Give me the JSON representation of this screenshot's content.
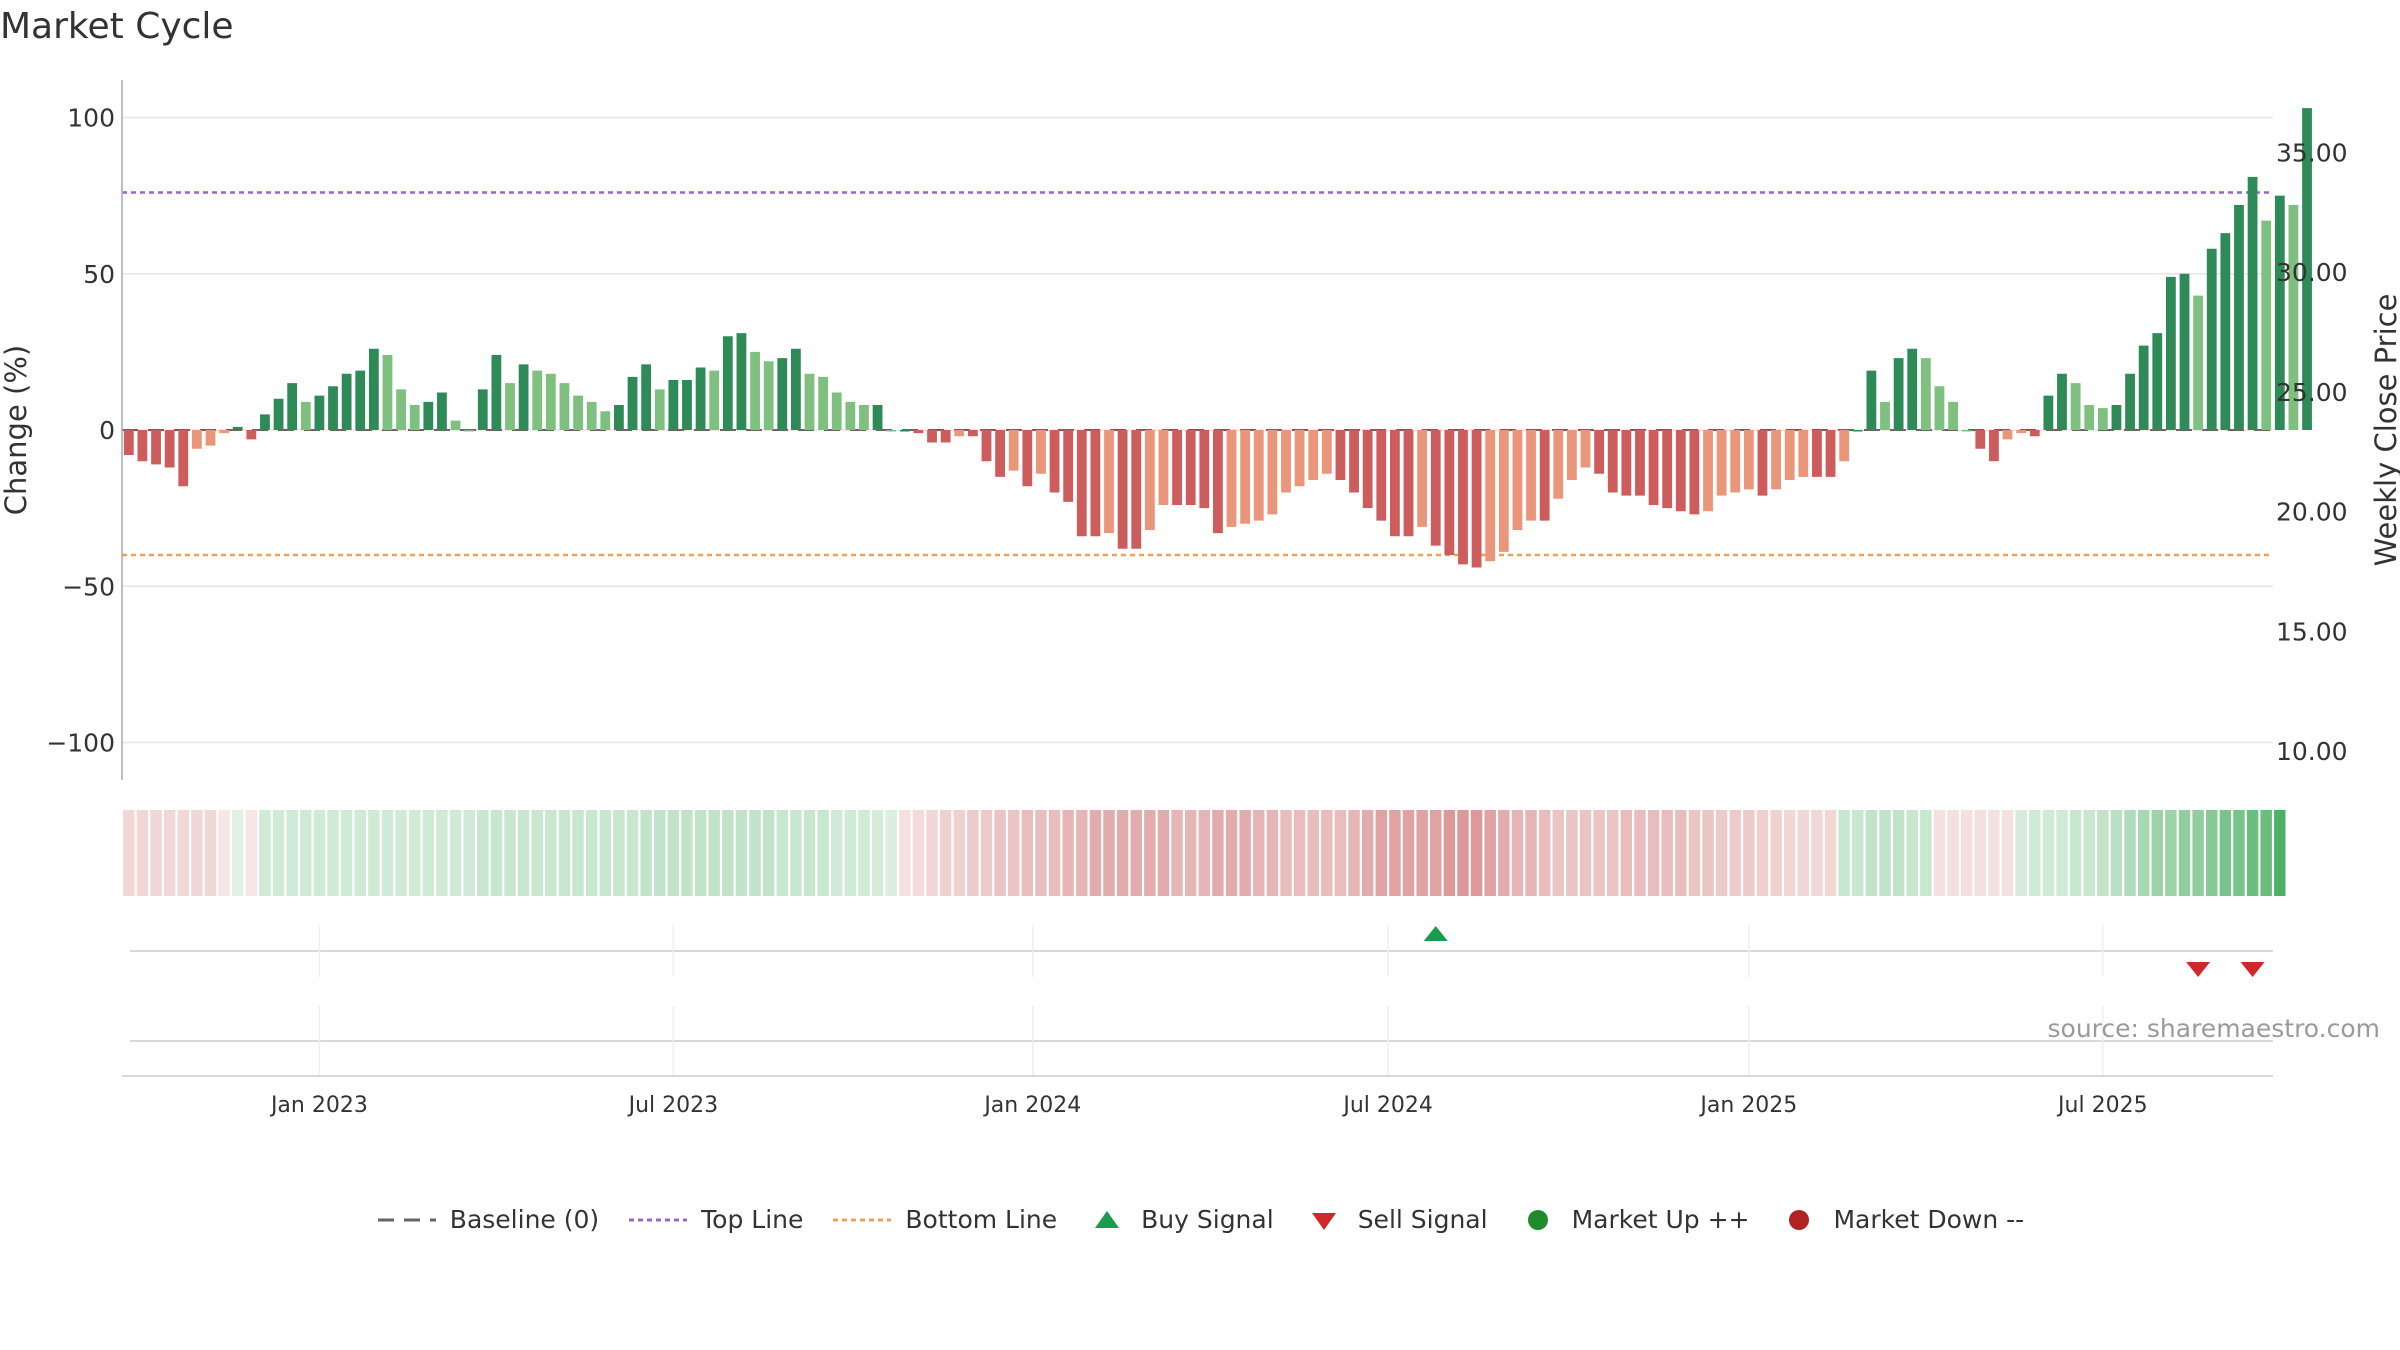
{
  "title": "Market Cycle",
  "source": "source: sharemaestro.com",
  "legend": {
    "baseline": "Baseline (0)",
    "top_line": "Top Line",
    "bottom_line": "Bottom Line",
    "buy": "Buy Signal",
    "sell": "Sell Signal",
    "up": "Market Up ++",
    "down": "Market Down --"
  },
  "colors": {
    "up_strong": "#2e8b57",
    "up_light": "#7fbf7f",
    "down_strong": "#cd5c5c",
    "down_light": "#e9967a",
    "top_line": "#9966cc",
    "bottom_line": "#f0a050",
    "buy": "#1a9b50",
    "sell": "#d02828",
    "market_up": "#1e8c2e",
    "market_down": "#b22222"
  },
  "chart_data": {
    "type": "bar",
    "title": "Market Cycle",
    "ylabel": "Change (%)",
    "y2label": "Weekly Close Price",
    "ylim": [
      -112,
      112
    ],
    "yticks": [
      100,
      50,
      0,
      -50,
      -100
    ],
    "ytick_labels": [
      "100",
      "50",
      "0",
      "−50",
      "−100"
    ],
    "y2ticks": [
      35,
      30,
      25,
      20,
      15,
      10
    ],
    "y2tick_labels": [
      "35.00",
      "30.00",
      "25.00",
      "20.00",
      "15.00",
      "10.00"
    ],
    "y2lim_at_ylim": [
      8.79,
      38.03
    ],
    "top_line": 76,
    "bottom_line": -40,
    "xticks": [
      "Jan 2023",
      "Jul 2023",
      "Jan 2024",
      "Jul 2024",
      "Jan 2025",
      "Jul 2025"
    ],
    "xtick_week_index": [
      14,
      40,
      66.4,
      92.5,
      119,
      145
    ],
    "buy_signal_weeks": [
      96
    ],
    "sell_signal_weeks": [
      152,
      156
    ],
    "weeks": 158,
    "values": [
      -8,
      -10,
      -11,
      -12,
      -18,
      -6,
      -5,
      -1,
      1,
      -3,
      5,
      10,
      15,
      9,
      11,
      14,
      18,
      19,
      26,
      24,
      13,
      8,
      9,
      12,
      3,
      0,
      13,
      24,
      15,
      21,
      19,
      18,
      15,
      11,
      9,
      6,
      8,
      17,
      21,
      13,
      16,
      16,
      20,
      19,
      30,
      31,
      25,
      22,
      23,
      26,
      18,
      17,
      12,
      9,
      8,
      8,
      0,
      0,
      -1,
      -4,
      -4,
      -2,
      -2,
      -10,
      -15,
      -13,
      -18,
      -14,
      -20,
      -23,
      -34,
      -34,
      -33,
      -38,
      -38,
      -32,
      -24,
      -24,
      -24,
      -25,
      -33,
      -31,
      -30,
      -29,
      -27,
      -20,
      -18,
      -16,
      -14,
      -16,
      -20,
      -25,
      -29,
      -34,
      -34,
      -31,
      -37,
      -40,
      -43,
      -44,
      -42,
      -39,
      -32,
      -29,
      -29,
      -22,
      -16,
      -12,
      -14,
      -20,
      -21,
      -21,
      -24,
      -25,
      -26,
      -27,
      -26,
      -21,
      -20,
      -19,
      -21,
      -19,
      -16,
      -15,
      -15,
      -15,
      -10,
      0,
      19,
      9,
      23,
      26,
      23,
      14,
      9,
      0,
      -6,
      -10,
      -3,
      -1,
      -2,
      11,
      18,
      15,
      8,
      7,
      8,
      18,
      27,
      31,
      49,
      50,
      43,
      58,
      63,
      72,
      81,
      67,
      75,
      72,
      103
    ],
    "heatmap": [
      -0.4,
      -0.4,
      -0.4,
      -0.4,
      -0.4,
      -0.4,
      -0.4,
      -0.2,
      0.2,
      -0.2,
      0.4,
      0.4,
      0.4,
      0.4,
      0.4,
      0.4,
      0.4,
      0.4,
      0.4,
      0.4,
      0.4,
      0.4,
      0.4,
      0.4,
      0.4,
      0.4,
      0.45,
      0.45,
      0.45,
      0.45,
      0.45,
      0.45,
      0.45,
      0.45,
      0.45,
      0.45,
      0.45,
      0.45,
      0.5,
      0.5,
      0.5,
      0.5,
      0.5,
      0.5,
      0.5,
      0.5,
      0.5,
      0.5,
      0.45,
      0.45,
      0.45,
      0.45,
      0.4,
      0.4,
      0.4,
      0.35,
      0.3,
      -0.3,
      -0.35,
      -0.4,
      -0.45,
      -0.45,
      -0.5,
      -0.5,
      -0.55,
      -0.55,
      -0.6,
      -0.6,
      -0.6,
      -0.65,
      -0.65,
      -0.7,
      -0.7,
      -0.7,
      -0.7,
      -0.7,
      -0.7,
      -0.65,
      -0.65,
      -0.65,
      -0.7,
      -0.7,
      -0.7,
      -0.65,
      -0.65,
      -0.6,
      -0.6,
      -0.6,
      -0.6,
      -0.6,
      -0.65,
      -0.7,
      -0.75,
      -0.75,
      -0.75,
      -0.75,
      -0.75,
      -0.8,
      -0.8,
      -0.8,
      -0.75,
      -0.7,
      -0.65,
      -0.65,
      -0.6,
      -0.55,
      -0.55,
      -0.55,
      -0.55,
      -0.55,
      -0.6,
      -0.6,
      -0.6,
      -0.6,
      -0.6,
      -0.55,
      -0.55,
      -0.5,
      -0.5,
      -0.5,
      -0.45,
      -0.45,
      -0.4,
      -0.4,
      -0.4,
      -0.4,
      0.45,
      0.45,
      0.5,
      0.5,
      0.5,
      0.45,
      0.45,
      -0.3,
      -0.3,
      -0.3,
      -0.3,
      -0.3,
      -0.3,
      0.35,
      0.4,
      0.4,
      0.4,
      0.45,
      0.45,
      0.5,
      0.55,
      0.6,
      0.65,
      0.7,
      0.7,
      0.75,
      0.75,
      0.8,
      0.85,
      0.85,
      0.9,
      0.9,
      1.0
    ]
  }
}
